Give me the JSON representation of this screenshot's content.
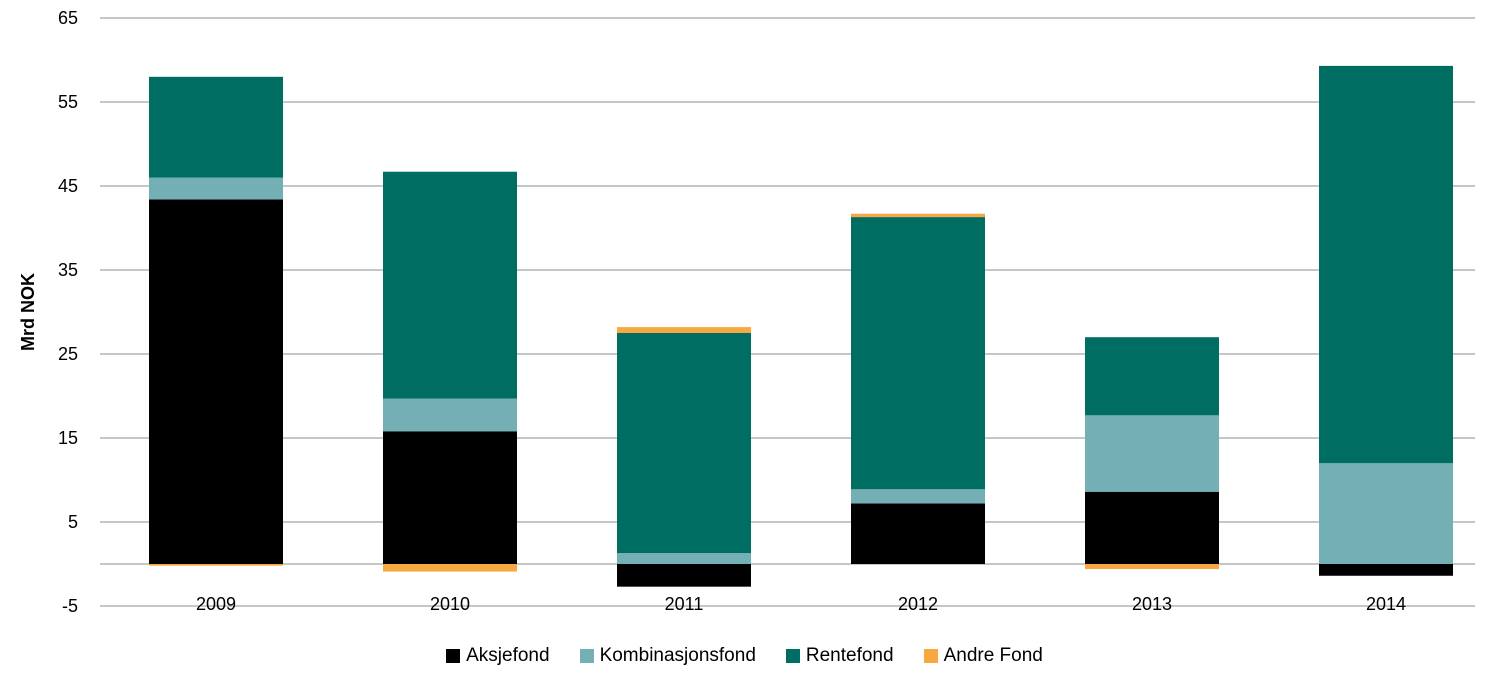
{
  "chart_data": {
    "type": "bar",
    "stacked": true,
    "categories": [
      "2009",
      "2010",
      "2011",
      "2012",
      "2013",
      "2014"
    ],
    "ylabel": "Mrd NOK",
    "xlabel": "",
    "title": "",
    "ylim": [
      -5,
      65
    ],
    "yticks": [
      -5,
      5,
      15,
      25,
      35,
      45,
      55,
      65
    ],
    "grid": true,
    "legend_position": "bottom",
    "series": [
      {
        "name": "Aksjefond",
        "color": "#000000",
        "values": [
          43.4,
          15.8,
          -2.7,
          7.2,
          8.6,
          -1.4
        ]
      },
      {
        "name": "Kombinasjonsfond",
        "color": "#74AFB5",
        "values": [
          2.6,
          3.9,
          1.3,
          1.7,
          9.1,
          12.0
        ]
      },
      {
        "name": "Rentefond",
        "color": "#006D63",
        "values": [
          12.0,
          27.0,
          26.2,
          32.4,
          9.3,
          47.3
        ]
      },
      {
        "name": "Andre Fond",
        "color": "#F7A840",
        "values": [
          -0.2,
          -0.9,
          0.7,
          0.4,
          -0.6,
          0.0
        ]
      }
    ]
  }
}
